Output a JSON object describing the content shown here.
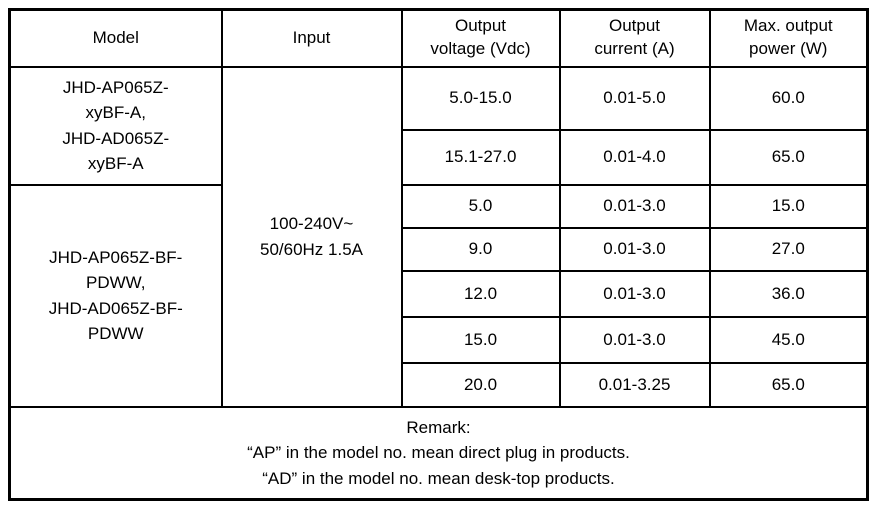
{
  "colors": {
    "border": "#000000",
    "text": "#000000",
    "background": "#ffffff"
  },
  "table": {
    "headers": {
      "model": [
        "Model"
      ],
      "input": [
        "Input"
      ],
      "voltage": [
        "Output",
        "voltage (Vdc)"
      ],
      "current": [
        "Output",
        "current (A)"
      ],
      "power": [
        "Max. output",
        "power (W)"
      ]
    },
    "model_groups": [
      {
        "lines": [
          "JHD-AP065Z-",
          "xyBF-A,",
          "JHD-AD065Z-",
          "xyBF-A"
        ]
      },
      {
        "lines": [
          "JHD-AP065Z-BF-",
          "PDWW,",
          "JHD-AD065Z-BF-",
          "PDWW"
        ]
      }
    ],
    "input": {
      "lines": [
        "100-240V~",
        "50/60Hz 1.5A"
      ]
    },
    "rows": [
      {
        "voltage": "5.0-15.0",
        "current": "0.01-5.0",
        "power": "60.0"
      },
      {
        "voltage": "15.1-27.0",
        "current": "0.01-4.0",
        "power": "65.0"
      },
      {
        "voltage": "5.0",
        "current": "0.01-3.0",
        "power": "15.0"
      },
      {
        "voltage": "9.0",
        "current": "0.01-3.0",
        "power": "27.0"
      },
      {
        "voltage": "12.0",
        "current": "0.01-3.0",
        "power": "36.0"
      },
      {
        "voltage": "15.0",
        "current": "0.01-3.0",
        "power": "45.0"
      },
      {
        "voltage": "20.0",
        "current": "0.01-3.25",
        "power": "65.0"
      }
    ],
    "remark": {
      "lines": [
        "Remark:",
        "“AP” in the model no. mean direct plug in products.",
        "“AD” in the model no. mean desk-top products."
      ]
    }
  }
}
